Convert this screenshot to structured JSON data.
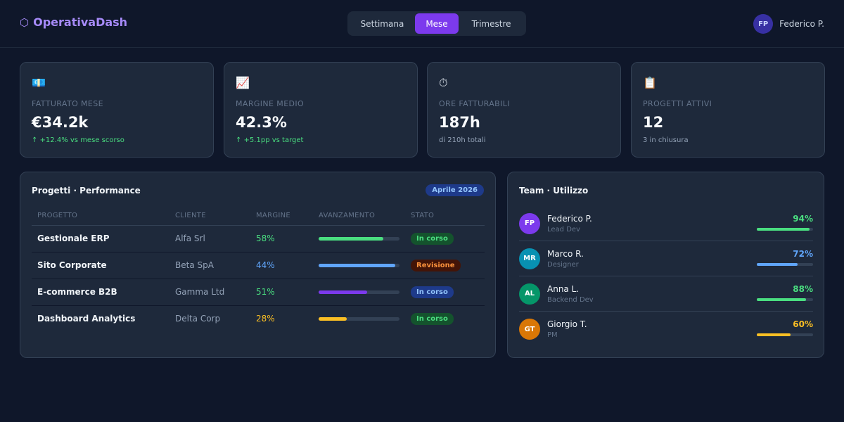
{
  "header": {
    "brand": "OperativaDash",
    "brand_icon": "⬡",
    "periods": [
      "Settimana",
      "Mese",
      "Trimestre"
    ],
    "active_period": "Mese",
    "user": {
      "initials": "FP",
      "name": "Federico P."
    }
  },
  "kpis": [
    {
      "icon": "💶",
      "icon_name": "euro-banknote-icon",
      "label": "FATTURATO MESE",
      "value": "€34.2k",
      "sub": "↑ +12.4% vs mese scorso",
      "trend": "up"
    },
    {
      "icon": "📈",
      "icon_name": "chart-increasing-icon",
      "label": "MARGINE MEDIO",
      "value": "42.3%",
      "sub": "↑ +5.1pp vs target",
      "trend": "up"
    },
    {
      "icon": "⏱",
      "icon_name": "stopwatch-icon",
      "label": "ORE FATTURABILI",
      "value": "187h",
      "sub": "di 210h totali",
      "trend": "neutral"
    },
    {
      "icon": "📋",
      "icon_name": "clipboard-icon",
      "label": "PROGETTI ATTIVI",
      "value": "12",
      "sub": "3 in chiusura",
      "trend": "neutral"
    }
  ],
  "projects": {
    "title": "Progetti · Performance",
    "period_badge": "Aprile 2026",
    "columns": [
      "PROGETTO",
      "CLIENTE",
      "MARGINE",
      "AVANZAMENTO",
      "STATO"
    ],
    "rows": [
      {
        "name": "Gestionale ERP",
        "client": "Alfa Srl",
        "margin": "58%",
        "margin_color": "#4ade80",
        "progress": 0.8,
        "bar_color": "#4ade80",
        "status": "In corso",
        "status_style": "green"
      },
      {
        "name": "Sito Corporate",
        "client": "Beta SpA",
        "margin": "44%",
        "margin_color": "#60a5fa",
        "progress": 0.95,
        "bar_color": "#60a5fa",
        "status": "Revisione",
        "status_style": "orange"
      },
      {
        "name": "E-commerce B2B",
        "client": "Gamma Ltd",
        "margin": "51%",
        "margin_color": "#4ade80",
        "progress": 0.6,
        "bar_color": "#7c3aed",
        "status": "In corso",
        "status_style": "blue"
      },
      {
        "name": "Dashboard Analytics",
        "client": "Delta Corp",
        "margin": "28%",
        "margin_color": "#fbbf24",
        "progress": 0.35,
        "bar_color": "#fbbf24",
        "status": "In corso",
        "status_style": "green"
      }
    ]
  },
  "team": {
    "title": "Team · Utilizzo",
    "members": [
      {
        "initials": "FP",
        "name": "Federico P.",
        "role": "Lead Dev",
        "utilization": "94%",
        "fraction": 0.94,
        "avatar_color": "#7c3aed",
        "color": "#4ade80"
      },
      {
        "initials": "MR",
        "name": "Marco R.",
        "role": "Designer",
        "utilization": "72%",
        "fraction": 0.72,
        "avatar_color": "#0891b2",
        "color": "#60a5fa"
      },
      {
        "initials": "AL",
        "name": "Anna L.",
        "role": "Backend Dev",
        "utilization": "88%",
        "fraction": 0.88,
        "avatar_color": "#059669",
        "color": "#4ade80"
      },
      {
        "initials": "GT",
        "name": "Giorgio T.",
        "role": "PM",
        "utilization": "60%",
        "fraction": 0.6,
        "avatar_color": "#d97706",
        "color": "#fbbf24"
      }
    ]
  }
}
